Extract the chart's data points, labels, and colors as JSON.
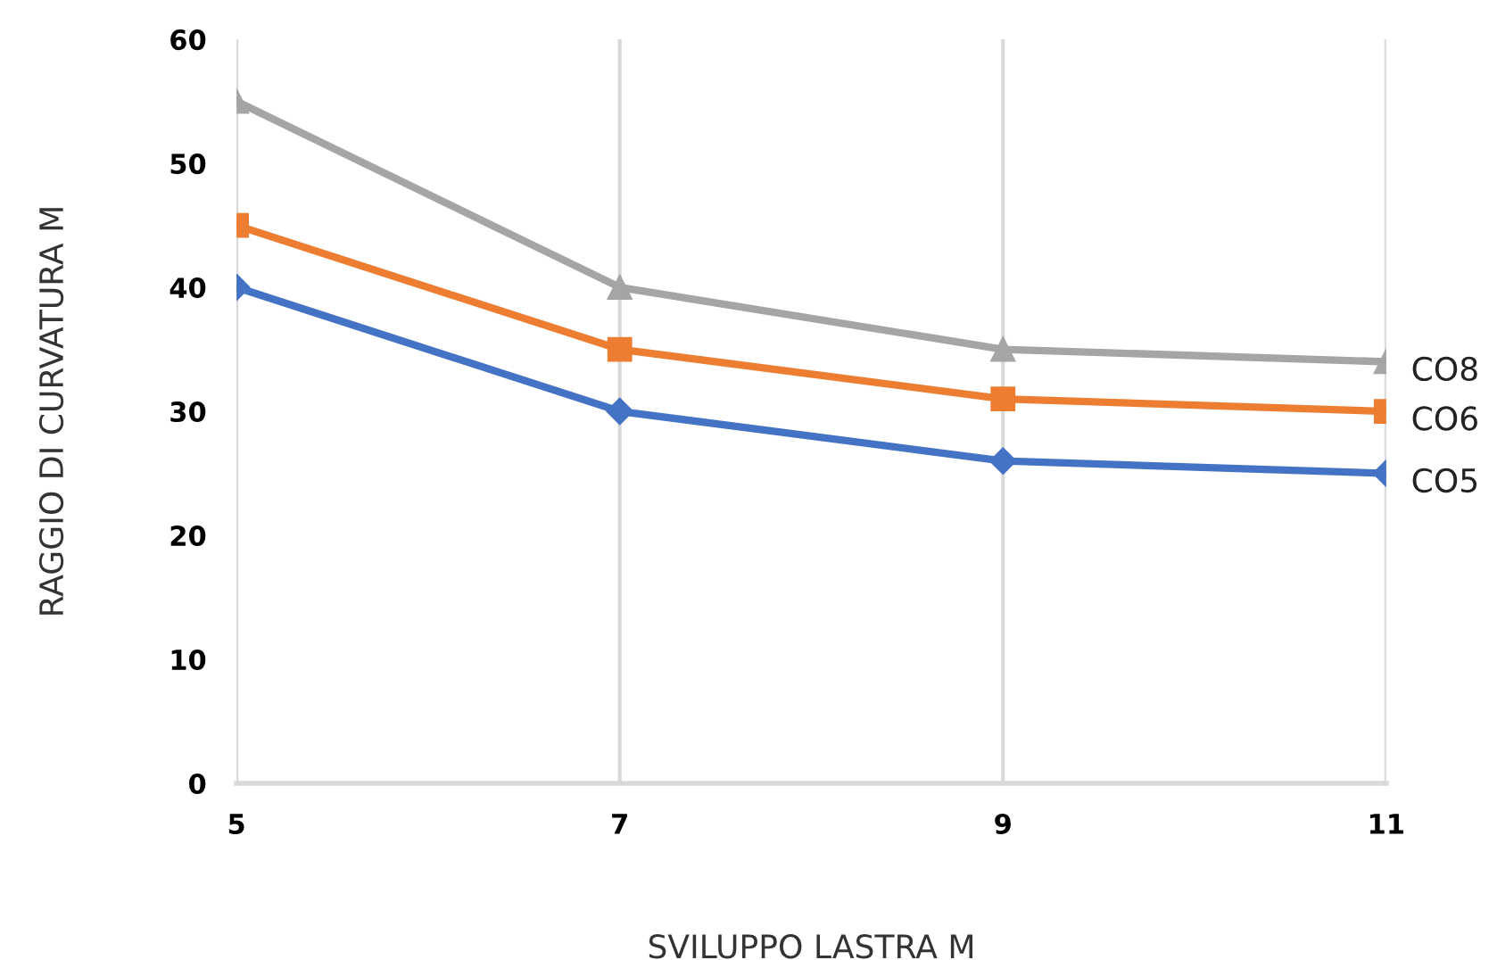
{
  "chart_data": {
    "type": "line",
    "xlabel": "SVILUPPO LASTRA M",
    "ylabel": "RAGGIO DI CURVATURA M",
    "x": [
      5,
      7,
      9,
      11
    ],
    "xlim": [
      5,
      11
    ],
    "xticks": [
      5,
      7,
      9,
      11
    ],
    "ylim": [
      0,
      60
    ],
    "yticks": [
      0,
      10,
      20,
      30,
      40,
      50,
      60
    ],
    "grid": "x",
    "series": [
      {
        "name": "CO8",
        "color": "#a5a5a5",
        "marker": "triangle",
        "values": [
          55,
          40,
          35,
          34
        ]
      },
      {
        "name": "CO6",
        "color": "#ed7d31",
        "marker": "square",
        "values": [
          45,
          35,
          31,
          30
        ]
      },
      {
        "name": "CO5",
        "color": "#4472c4",
        "marker": "diamond",
        "values": [
          40,
          30,
          26,
          25
        ]
      }
    ]
  }
}
